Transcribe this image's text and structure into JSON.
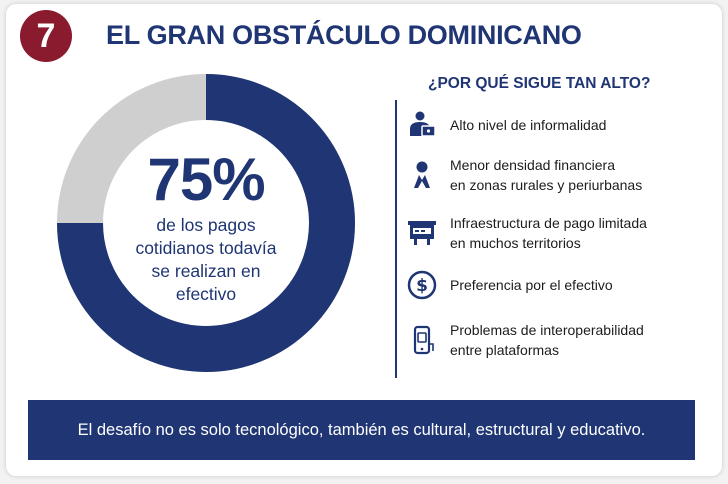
{
  "header": {
    "number": "7",
    "title": "EL GRAN OBSTÁCULO DOMINICANO"
  },
  "stat": {
    "percent": "75%",
    "fraction": 0.75,
    "description_lines": [
      "de los pagos",
      "cotidianos todavía",
      "se realizan en",
      "efectivo"
    ]
  },
  "reasons_section": {
    "title": "¿POR QUÉ SIGUE TAN ALTO?",
    "items": [
      {
        "icon": "person-laptop-icon",
        "lines": [
          "Alto nivel de informalidad"
        ]
      },
      {
        "icon": "person-icon",
        "lines": [
          "Menor densidad financiera",
          "en zonas rurales y periurbanas"
        ]
      },
      {
        "icon": "payment-terminal-icon",
        "lines": [
          "Infraestructura de pago limitada",
          "en muchos territorios"
        ]
      },
      {
        "icon": "dollar-coin-icon",
        "lines": [
          "Preferencia por el efectivo"
        ]
      },
      {
        "icon": "mobile-phone-icon",
        "lines": [
          "Problemas de interoperabilidad",
          "entre plataformas"
        ]
      }
    ]
  },
  "footer": {
    "text": "El desafío no es solo tecnológico, también es cultural, estructural y educativo."
  },
  "colors": {
    "navy": "#1f3574",
    "maroon": "#8a1a2d",
    "gray": "#cfcfcf",
    "text_dark": "#1c1c1c"
  }
}
